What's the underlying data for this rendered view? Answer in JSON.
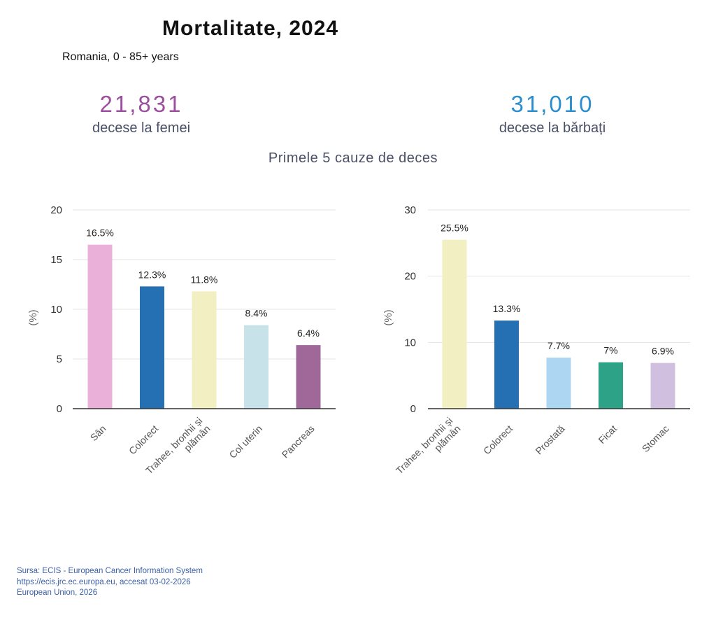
{
  "header": {
    "title": "Mortalitate, 2024",
    "subtitle": "Romania, 0 - 85+ years"
  },
  "stats": {
    "female": {
      "value": "21,831",
      "label": "decese la femei",
      "color": "#9b4f9e"
    },
    "male": {
      "value": "31,010",
      "label": "decese la bărbați",
      "color": "#2b8fcf"
    }
  },
  "section_title": "Primele 5 cauze de deces",
  "chart_data": [
    {
      "type": "bar",
      "ylabel": "(%)",
      "ylim": [
        0,
        20
      ],
      "yticks": [
        0,
        5,
        10,
        15,
        20
      ],
      "grid": true,
      "categories": [
        "Sân",
        "Colorect",
        "Trahee, bronhii și plămân",
        "Col uterin",
        "Pancreas"
      ],
      "category_lines": [
        [
          "Sân"
        ],
        [
          "Colorect"
        ],
        [
          "Trahee, bronhii și",
          "plămân"
        ],
        [
          "Col uterin"
        ],
        [
          "Pancreas"
        ]
      ],
      "values": [
        16.5,
        12.3,
        11.8,
        8.4,
        6.4
      ],
      "value_labels": [
        "16.5%",
        "12.3%",
        "11.8%",
        "8.4%",
        "6.4%"
      ],
      "colors": [
        "#ebb0da",
        "#2570b2",
        "#f2f0c2",
        "#c7e3e9",
        "#a06799"
      ]
    },
    {
      "type": "bar",
      "ylabel": "(%)",
      "ylim": [
        0,
        30
      ],
      "yticks": [
        0,
        10,
        20,
        30
      ],
      "grid": true,
      "categories": [
        "Trahee, bronhii și plămân",
        "Colorect",
        "Prostată",
        "Ficat",
        "Stomac"
      ],
      "category_lines": [
        [
          "Trahee, bronhii și",
          "plămân"
        ],
        [
          "Colorect"
        ],
        [
          "Prostată"
        ],
        [
          "Ficat"
        ],
        [
          "Stomac"
        ]
      ],
      "values": [
        25.5,
        13.3,
        7.7,
        7,
        6.9
      ],
      "value_labels": [
        "25.5%",
        "13.3%",
        "7.7%",
        "7%",
        "6.9%"
      ],
      "colors": [
        "#f2f0c2",
        "#2570b2",
        "#acd6f2",
        "#2ea287",
        "#d1bfe0"
      ]
    }
  ],
  "footer": {
    "line1": "Sursa: ECIS - European Cancer Information System",
    "line2": "https://ecis.jrc.ec.europa.eu, accesat  03-02-2026",
    "line3": "European Union, 2026"
  }
}
